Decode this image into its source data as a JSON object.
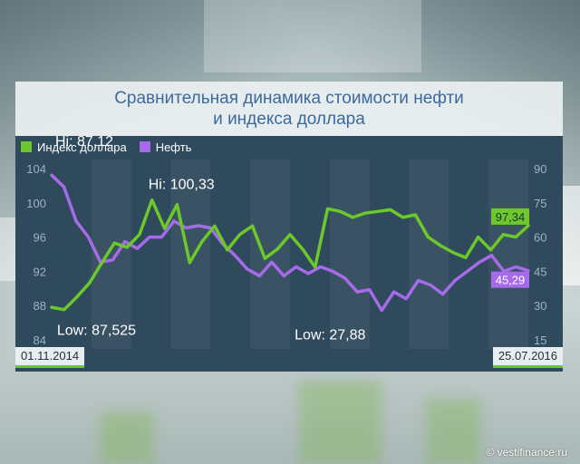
{
  "title_line1": "Сравнительная динамика стоимости нефти",
  "title_line2": "и индекса доллара",
  "legend": [
    {
      "label": "Индекс доллара",
      "color": "#6cc82b"
    },
    {
      "label": "Нефть",
      "color": "#a56be8"
    }
  ],
  "date_start": "01.11.2014",
  "date_end": "25.07.2016",
  "watermark": "© vestifinance.ru",
  "annotations": {
    "oil_high": "Hi: 87,12",
    "dollar_high": "Hi: 100,33",
    "dollar_low": "Low: 87,525",
    "oil_low": "Low: 27,88",
    "dollar_last": "97,34",
    "oil_last": "45,29"
  },
  "chart_data": {
    "type": "line",
    "left_axis": {
      "ticks": [
        "104",
        "100",
        "96",
        "92",
        "88",
        "84"
      ],
      "ylim": [
        84,
        104
      ]
    },
    "right_axis": {
      "ticks": [
        "90",
        "75",
        "60",
        "45",
        "30",
        "15"
      ],
      "ylim": [
        15,
        90
      ]
    },
    "series": [
      {
        "name": "Индекс доллара",
        "color": "#6cc82b",
        "axis": "left",
        "values": [
          87.8,
          87.525,
          89.0,
          90.6,
          93.0,
          95.3,
          94.8,
          96.3,
          100.33,
          97.0,
          99.8,
          93.0,
          95.5,
          97.3,
          94.5,
          96.3,
          97.3,
          93.5,
          94.6,
          96.3,
          94.6,
          92.5,
          99.3,
          99.0,
          98.3,
          98.8,
          99.0,
          99.2,
          98.3,
          98.6,
          96.0,
          95.0,
          94.2,
          93.6,
          96.0,
          94.5,
          96.3,
          96.0,
          97.34
        ]
      },
      {
        "name": "Нефть",
        "color": "#a56be8",
        "axis": "right",
        "values": [
          87.12,
          82.0,
          67.0,
          60.0,
          49.0,
          50.0,
          58.0,
          55.0,
          60.0,
          60.0,
          67.0,
          64.0,
          65.0,
          64.0,
          57.0,
          52.0,
          46.0,
          43.0,
          49.0,
          43.0,
          47.0,
          44.0,
          47.0,
          45.0,
          42.0,
          36.0,
          37.0,
          27.88,
          36.0,
          33.0,
          41.0,
          39.0,
          35.0,
          41.0,
          45.0,
          49.0,
          52.0,
          45.0,
          47.0,
          45.29
        ]
      }
    ]
  }
}
